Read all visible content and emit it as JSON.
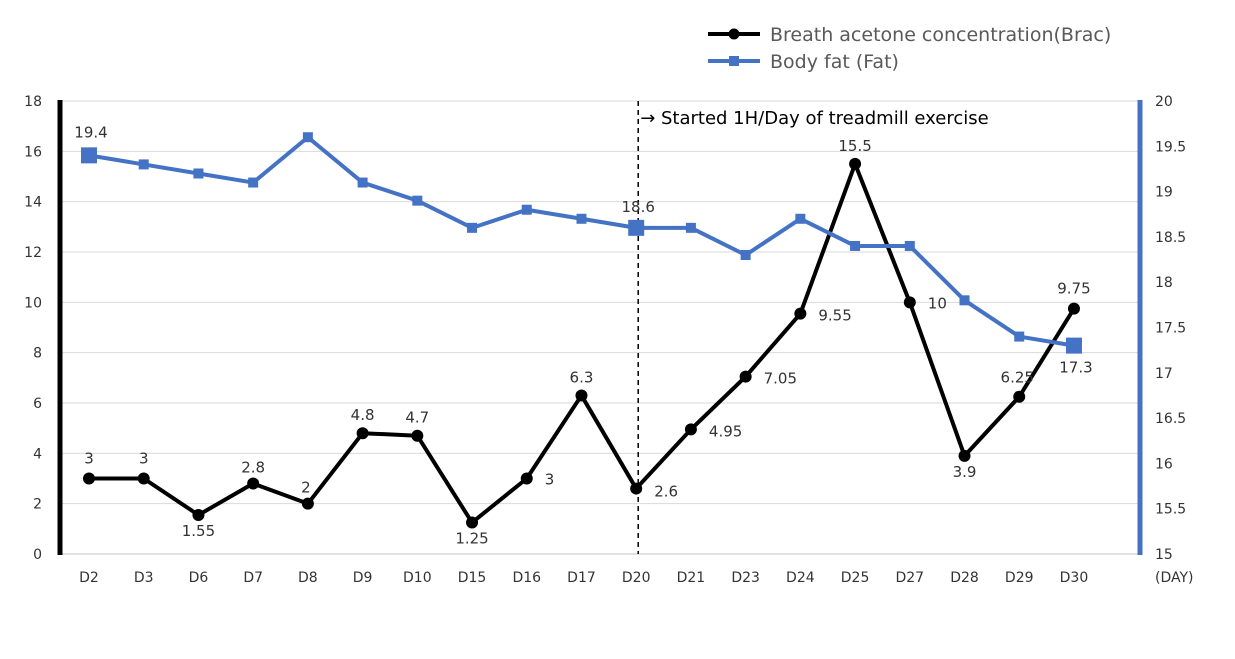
{
  "chart_data": {
    "type": "line",
    "categories": [
      "D2",
      "D3",
      "D6",
      "D7",
      "D8",
      "D9",
      "D10",
      "D15",
      "D16",
      "D17",
      "D20",
      "D21",
      "D23",
      "D24",
      "D25",
      "D27",
      "D28",
      "D29",
      "D30"
    ],
    "x_unit_label": "(DAY)",
    "series": [
      {
        "name": "Breath acetone concentration(Brac)",
        "axis": "left",
        "color": "#000000",
        "marker": "circle",
        "values": [
          3,
          3,
          1.55,
          2.8,
          2,
          4.8,
          4.7,
          1.25,
          3,
          6.3,
          2.6,
          4.95,
          7.05,
          9.55,
          15.5,
          10,
          3.9,
          6.25,
          9.75
        ],
        "labels": [
          "3",
          "3",
          "1.55",
          "2.8",
          "2",
          "4.8",
          "4.7",
          "1.25",
          "3",
          "6.3",
          "2.6",
          "4.95",
          "7.05",
          "9.55",
          "15.5",
          "10",
          "3.9",
          "6.25",
          "9.75"
        ]
      },
      {
        "name": "Body fat (Fat)",
        "axis": "right",
        "color": "#4472C4",
        "marker": "square",
        "values": [
          19.4,
          19.3,
          19.2,
          19.1,
          19.6,
          19.1,
          18.9,
          18.6,
          18.8,
          18.7,
          18.6,
          18.6,
          18.3,
          18.7,
          18.4,
          18.4,
          17.8,
          17.4,
          17.3
        ],
        "labels": [
          "19.4",
          "",
          "",
          "",
          "",
          "",
          "",
          "",
          "",
          "",
          "18.6",
          "",
          "",
          "",
          "",
          "",
          "",
          "",
          "17.3"
        ]
      }
    ],
    "y_left": {
      "min": 0,
      "max": 18,
      "step": 2,
      "ticks": [
        "0",
        "2",
        "4",
        "6",
        "8",
        "10",
        "12",
        "14",
        "16",
        "18"
      ]
    },
    "y_right": {
      "min": 15,
      "max": 20,
      "step": 0.5,
      "ticks": [
        "15",
        "15.5",
        "16",
        "16.5",
        "17",
        "17.5",
        "18",
        "18.5",
        "19",
        "19.5",
        "20"
      ]
    },
    "annotation": {
      "text": "→ Started 1H/Day of treadmill exercise",
      "at_category": "D20"
    },
    "grid": true,
    "legend_position": "top-right"
  }
}
